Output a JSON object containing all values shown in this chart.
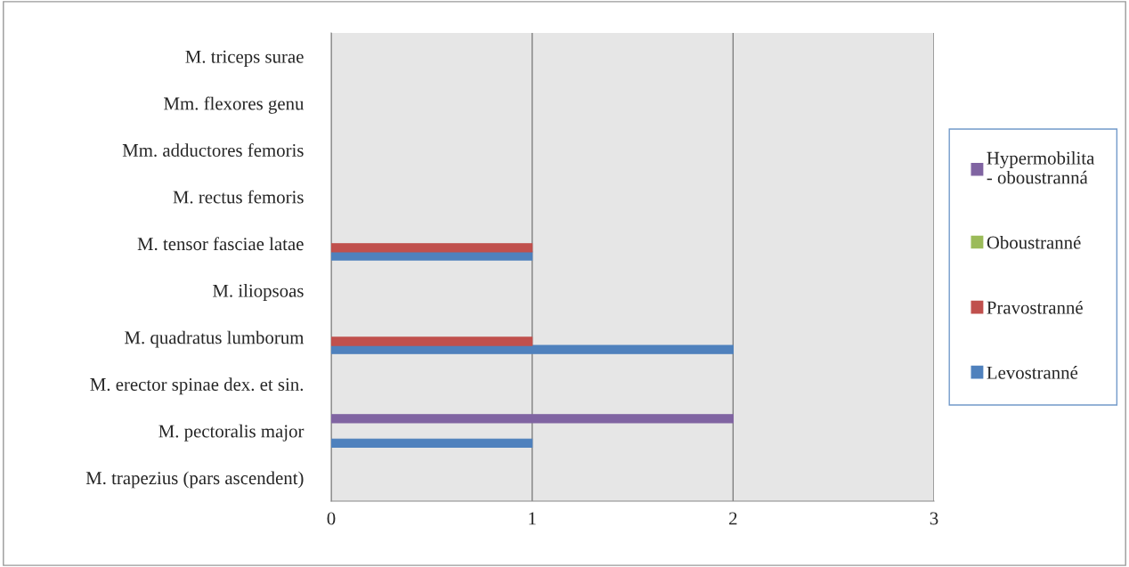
{
  "chart_data": {
    "type": "bar",
    "orientation": "horizontal",
    "categories": [
      "M. triceps surae",
      "Mm. flexores genu",
      "Mm. adductores femoris",
      "M. rectus femoris",
      "M. tensor fasciae latae",
      "M. iliopsoas",
      "M. quadratus lumborum",
      "M. erector spinae dex. et sin.",
      "M. pectoralis major",
      "M. trapezius (pars ascendent)"
    ],
    "series": [
      {
        "name": "Levostranné",
        "color": "#4f81bd",
        "values": [
          null,
          null,
          null,
          null,
          1,
          null,
          2,
          null,
          1,
          null
        ]
      },
      {
        "name": "Pravostranné",
        "color": "#c0504d",
        "values": [
          null,
          null,
          null,
          null,
          1,
          null,
          1,
          null,
          null,
          null
        ]
      },
      {
        "name": "Oboustranné",
        "color": "#9bbb59",
        "values": [
          null,
          null,
          null,
          null,
          null,
          null,
          null,
          null,
          null,
          null
        ]
      },
      {
        "name": "Hypermobilita - oboustranná",
        "color": "#8064a2",
        "values": [
          null,
          null,
          null,
          null,
          null,
          null,
          null,
          null,
          2,
          null
        ]
      }
    ],
    "xlim": [
      0,
      3
    ],
    "xticks": [
      0,
      1,
      2,
      3
    ],
    "grid": "x",
    "legend": "right"
  }
}
